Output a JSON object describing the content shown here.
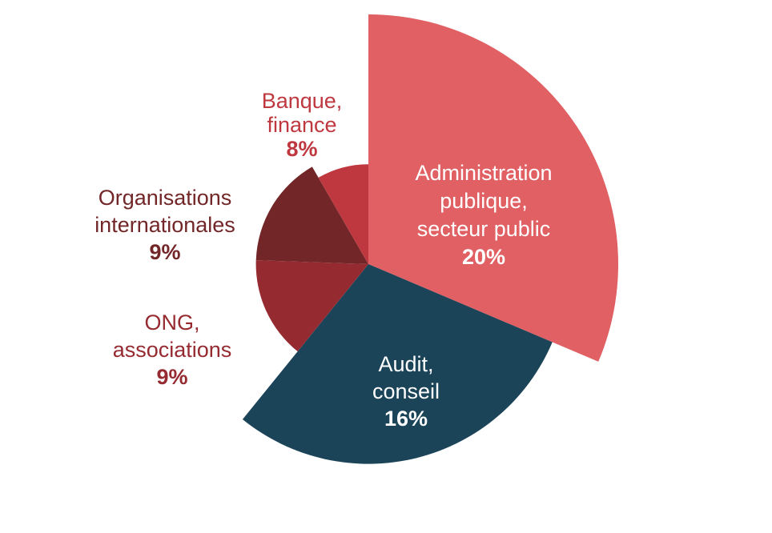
{
  "chart_data": {
    "type": "pie",
    "variant": "polar-area",
    "title": "",
    "slices": [
      {
        "name_lines": [
          "Administration",
          "publique,",
          "secteur public"
        ],
        "value_label": "20%",
        "value": 20,
        "color": "#e06063",
        "label_color": "#ffffff"
      },
      {
        "name_lines": [
          "Audit,",
          "conseil"
        ],
        "value_label": "16%",
        "value": 16,
        "color": "#1b4459",
        "label_color": "#ffffff"
      },
      {
        "name_lines": [
          "ONG,",
          "associations"
        ],
        "value_label": "9%",
        "value": 9,
        "color": "#962a31",
        "label_color": "#962a31"
      },
      {
        "name_lines": [
          "Organisations",
          "internationales"
        ],
        "value_label": "9%",
        "value": 9,
        "color": "#722628",
        "label_color": "#722628"
      },
      {
        "name_lines": [
          "Banque,",
          "finance"
        ],
        "value_label": "8%",
        "value": 8,
        "color": "#bf3840",
        "label_color": "#bf3840"
      }
    ]
  }
}
